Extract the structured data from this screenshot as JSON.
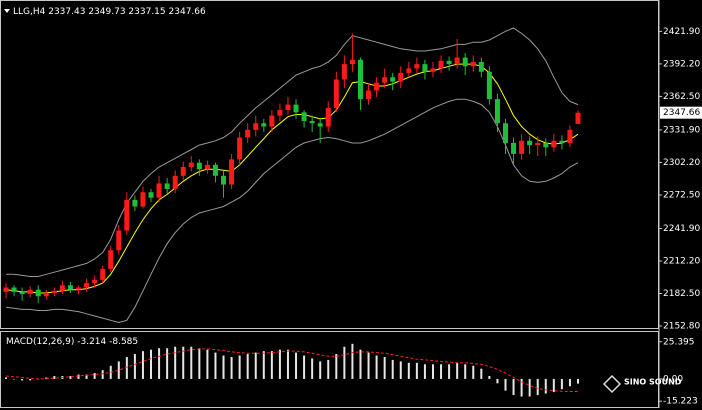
{
  "chart_data": [
    {
      "type": "candlestick",
      "title": "LLG,H4",
      "open": [
        2184,
        2188,
        2184,
        2182,
        2186,
        2180,
        2183,
        2185,
        2190,
        2186,
        2188,
        2192,
        2195,
        2205,
        2222,
        2240,
        2268,
        2262,
        2275,
        2270,
        2283,
        2278,
        2290,
        2298,
        2302,
        2296,
        2300,
        2290,
        2282,
        2305,
        2325,
        2332,
        2338,
        2335,
        2345,
        2350,
        2355,
        2348,
        2340,
        2338,
        2335,
        2352,
        2378,
        2392,
        2396,
        2360,
        2368,
        2375,
        2380,
        2376,
        2384,
        2388,
        2392,
        2385,
        2388,
        2395,
        2392,
        2398,
        2390,
        2394,
        2385,
        2360,
        2338,
        2320,
        2310,
        2322,
        2318,
        2320,
        2316,
        2322,
        2320,
        2337.43
      ],
      "high": [
        2192,
        2190,
        2188,
        2189,
        2190,
        2186,
        2188,
        2194,
        2193,
        2190,
        2196,
        2199,
        2208,
        2226,
        2245,
        2275,
        2272,
        2280,
        2278,
        2290,
        2288,
        2295,
        2303,
        2308,
        2305,
        2304,
        2302,
        2295,
        2310,
        2330,
        2338,
        2345,
        2342,
        2350,
        2356,
        2362,
        2360,
        2350,
        2345,
        2342,
        2358,
        2385,
        2400,
        2420,
        2398,
        2374,
        2380,
        2388,
        2384,
        2390,
        2394,
        2398,
        2396,
        2394,
        2400,
        2399,
        2415,
        2402,
        2400,
        2398,
        2390,
        2365,
        2342,
        2325,
        2328,
        2326,
        2326,
        2324,
        2328,
        2327,
        2336,
        2349.73
      ],
      "low": [
        2178,
        2180,
        2176,
        2179,
        2174,
        2177,
        2180,
        2182,
        2183,
        2182,
        2184,
        2188,
        2192,
        2202,
        2218,
        2236,
        2258,
        2260,
        2266,
        2266,
        2274,
        2274,
        2286,
        2294,
        2290,
        2292,
        2284,
        2270,
        2278,
        2300,
        2320,
        2326,
        2330,
        2330,
        2340,
        2346,
        2342,
        2334,
        2330,
        2320,
        2330,
        2348,
        2370,
        2385,
        2350,
        2355,
        2362,
        2370,
        2368,
        2370,
        2380,
        2384,
        2378,
        2380,
        2384,
        2386,
        2388,
        2382,
        2385,
        2380,
        2355,
        2330,
        2310,
        2300,
        2305,
        2310,
        2308,
        2308,
        2312,
        2314,
        2316,
        2337.15
      ],
      "close": [
        2188,
        2184,
        2182,
        2186,
        2180,
        2183,
        2185,
        2190,
        2186,
        2188,
        2192,
        2195,
        2205,
        2222,
        2240,
        2268,
        2262,
        2275,
        2270,
        2283,
        2278,
        2290,
        2298,
        2302,
        2296,
        2300,
        2290,
        2282,
        2305,
        2325,
        2332,
        2338,
        2335,
        2345,
        2350,
        2355,
        2348,
        2340,
        2338,
        2335,
        2352,
        2378,
        2392,
        2396,
        2360,
        2368,
        2375,
        2380,
        2376,
        2384,
        2388,
        2392,
        2385,
        2388,
        2395,
        2392,
        2398,
        2390,
        2394,
        2385,
        2360,
        2338,
        2320,
        2310,
        2322,
        2318,
        2320,
        2316,
        2322,
        2320,
        2332,
        2347.66
      ],
      "up_color": "#ff1a1a",
      "down_color": "#1fbf3a",
      "overlays": [
        {
          "color": "#9a9a9a",
          "values": [
            2200,
            2200,
            2199,
            2198,
            2198,
            2200,
            2202,
            2204,
            2206,
            2208,
            2210,
            2214,
            2220,
            2232,
            2250,
            2265,
            2275,
            2285,
            2292,
            2298,
            2302,
            2306,
            2310,
            2314,
            2318,
            2320,
            2322,
            2325,
            2330,
            2338,
            2345,
            2352,
            2358,
            2364,
            2370,
            2376,
            2382,
            2385,
            2388,
            2390,
            2394,
            2400,
            2410,
            2418,
            2416,
            2414,
            2412,
            2410,
            2408,
            2406,
            2405,
            2404,
            2404,
            2405,
            2406,
            2408,
            2410,
            2410,
            2412,
            2412,
            2414,
            2418,
            2422,
            2425,
            2420,
            2414,
            2406,
            2395,
            2380,
            2366,
            2358,
            2355
          ]
        },
        {
          "color": "#9a9a9a",
          "values": [
            2170,
            2169,
            2168,
            2168,
            2167,
            2167,
            2168,
            2168,
            2167,
            2166,
            2164,
            2162,
            2160,
            2158,
            2156,
            2158,
            2170,
            2185,
            2200,
            2215,
            2228,
            2238,
            2246,
            2252,
            2256,
            2258,
            2260,
            2262,
            2266,
            2270,
            2276,
            2284,
            2292,
            2298,
            2304,
            2310,
            2316,
            2320,
            2322,
            2324,
            2325,
            2324,
            2322,
            2320,
            2320,
            2322,
            2325,
            2328,
            2332,
            2336,
            2340,
            2344,
            2348,
            2352,
            2355,
            2358,
            2360,
            2360,
            2358,
            2355,
            2348,
            2335,
            2318,
            2300,
            2290,
            2285,
            2284,
            2285,
            2288,
            2292,
            2298,
            2302
          ]
        },
        {
          "color": "#ffff00",
          "values": [
            2186,
            2185,
            2184,
            2184,
            2183,
            2183,
            2184,
            2185,
            2186,
            2186,
            2187,
            2189,
            2192,
            2200,
            2212,
            2225,
            2238,
            2250,
            2260,
            2268,
            2273,
            2279,
            2285,
            2290,
            2294,
            2296,
            2296,
            2295,
            2294,
            2300,
            2308,
            2316,
            2324,
            2332,
            2338,
            2344,
            2346,
            2346,
            2344,
            2342,
            2343,
            2350,
            2362,
            2375,
            2376,
            2374,
            2372,
            2372,
            2374,
            2377,
            2380,
            2383,
            2385,
            2386,
            2388,
            2390,
            2392,
            2392,
            2392,
            2390,
            2384,
            2374,
            2360,
            2345,
            2335,
            2328,
            2323,
            2320,
            2319,
            2320,
            2323,
            2328
          ]
        }
      ],
      "ylim": [
        2151,
        2446
      ],
      "yticks": [
        {
          "value": 2152.8,
          "label": "2152.80"
        },
        {
          "value": 2182.5,
          "label": "2182.50"
        },
        {
          "value": 2212.2,
          "label": "2212.20"
        },
        {
          "value": 2241.9,
          "label": "2241.90"
        },
        {
          "value": 2272.5,
          "label": "2272.50"
        },
        {
          "value": 2302.2,
          "label": "2302.20"
        },
        {
          "value": 2331.9,
          "label": "2331.90"
        },
        {
          "value": 2362.5,
          "label": "2362.50"
        },
        {
          "value": 2392.2,
          "label": "2392.20"
        },
        {
          "value": 2421.9,
          "label": "2421.90"
        }
      ]
    },
    {
      "type": "macd",
      "title": "MACD(12,26,9)",
      "histogram": {
        "color": "#e6e6e6",
        "values": [
          1,
          0,
          -1,
          -1,
          0,
          1,
          2,
          2,
          2,
          3,
          3,
          4,
          6,
          9,
          12,
          15,
          17,
          19,
          20,
          21,
          21,
          22,
          22,
          22,
          21,
          20,
          18,
          16,
          15,
          16,
          17,
          18,
          19,
          19,
          20,
          20,
          18,
          16,
          14,
          12,
          13,
          17,
          22,
          24,
          20,
          18,
          16,
          15,
          13,
          12,
          11,
          11,
          10,
          10,
          10,
          10,
          11,
          10,
          9,
          7,
          2,
          -3,
          -8,
          -11,
          -12,
          -12,
          -11,
          -10,
          -9,
          -7,
          -5,
          -3.214
        ]
      },
      "signal": {
        "color": "#ff2020",
        "values": [
          2,
          1.5,
          1,
          0.5,
          0,
          0,
          0.5,
          1,
          1.5,
          2,
          2.5,
          3,
          3.5,
          4.5,
          6,
          8,
          10,
          12,
          14,
          15.5,
          17,
          18,
          19,
          20,
          20.5,
          20.5,
          20,
          19.5,
          18.5,
          18,
          17.5,
          17.5,
          17.5,
          18,
          18.5,
          19,
          19,
          18.5,
          17.5,
          16.5,
          15.5,
          15.5,
          16.5,
          18,
          18.5,
          18.5,
          18,
          17.5,
          16.5,
          15.5,
          14.5,
          13.5,
          13,
          12.5,
          12,
          11.5,
          11,
          11,
          10.5,
          10,
          8.5,
          6.5,
          4,
          1,
          -2,
          -4.5,
          -6.5,
          -7.5,
          -8,
          -8.5,
          -8.6,
          -8.585
        ]
      },
      "ylim": [
        -18.5,
        31.4
      ],
      "yticks": [
        25.395,
        {
          "value": 0,
          "label": "0.00"
        },
        -15.223
      ]
    }
  ],
  "watermark": "SINO SOUND"
}
